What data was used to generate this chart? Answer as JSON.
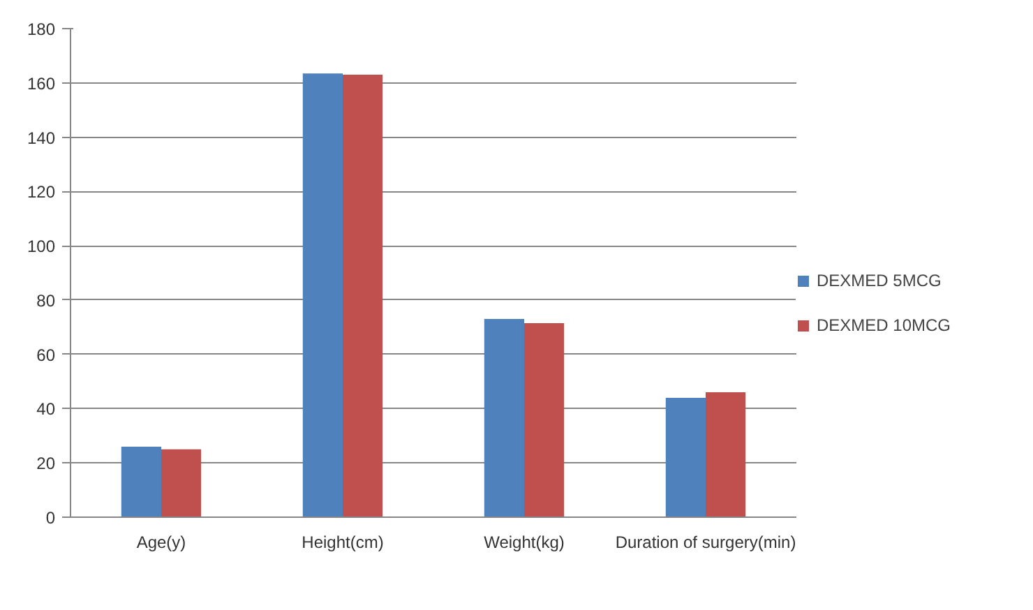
{
  "chart_data": {
    "type": "bar",
    "categories": [
      "Age(y)",
      "Height(cm)",
      "Weight(kg)",
      "Duration of surgery(min)"
    ],
    "series": [
      {
        "name": "DEXMED 5MCG",
        "color": "#4f81bd",
        "values": [
          26,
          163.5,
          73,
          44
        ]
      },
      {
        "name": "DEXMED 10MCG",
        "color": "#c0504d",
        "values": [
          25,
          163,
          71.5,
          46
        ]
      }
    ],
    "ylim": [
      0,
      180
    ],
    "yticks": [
      0,
      20,
      40,
      60,
      80,
      100,
      120,
      140,
      160,
      180
    ],
    "grid": "y",
    "legend": "right"
  }
}
